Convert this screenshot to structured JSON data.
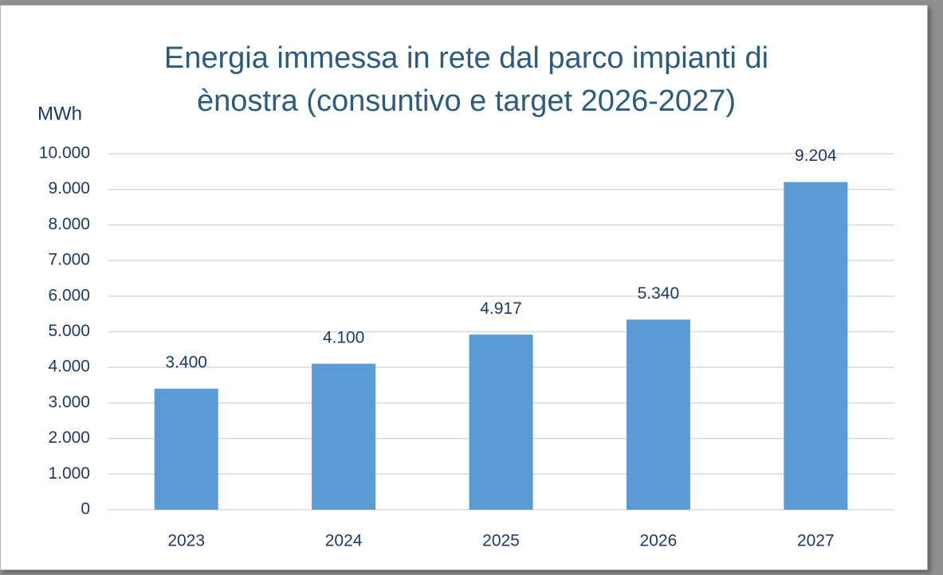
{
  "chart_data": {
    "type": "bar",
    "title": "Energia immessa in rete dal parco impianti di ènostra (consuntivo e target 2026-2027)",
    "y_label": "MWh",
    "categories": [
      "2023",
      "2024",
      "2025",
      "2026",
      "2027"
    ],
    "values": [
      3400,
      4100,
      4917,
      5340,
      9204
    ],
    "value_labels": [
      "3.400",
      "4.100",
      "4.917",
      "5.340",
      "9.204"
    ],
    "color": "#5b9bd5",
    "ylim": [
      0,
      10000
    ],
    "yticks": [
      0,
      {
        "value": 1000,
        "label": "1.000"
      },
      {
        "value": 2000,
        "label": "2.000"
      },
      {
        "value": 3000,
        "label": "3.000"
      },
      {
        "value": 4000,
        "label": "4.000"
      },
      {
        "value": 5000,
        "label": "5.000"
      },
      {
        "value": 6000,
        "label": "6.000"
      },
      {
        "value": 7000,
        "label": "7.000"
      },
      {
        "value": 8000,
        "label": "8.000"
      },
      {
        "value": 9000,
        "label": "9.000"
      },
      {
        "value": 10000,
        "label": "10.000"
      }
    ],
    "grid": true
  }
}
